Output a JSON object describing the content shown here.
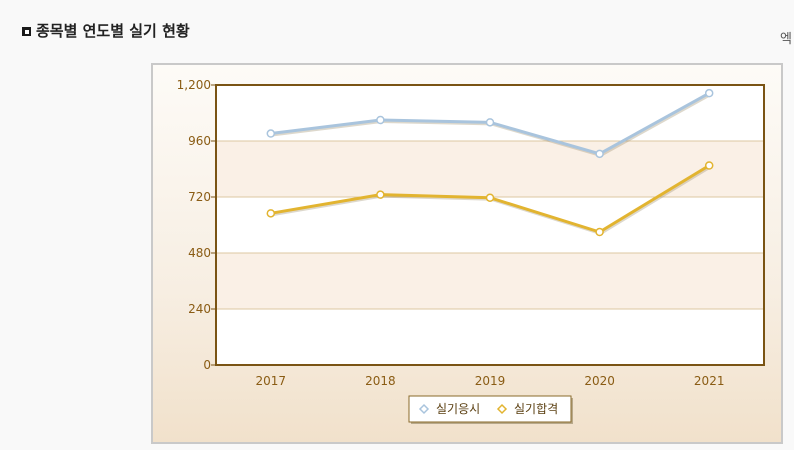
{
  "page": {
    "title": "종목별 연도별 실기 현황",
    "excel_label": "엑"
  },
  "chart_data": {
    "type": "line",
    "categories": [
      "2017",
      "2018",
      "2019",
      "2020",
      "2021"
    ],
    "ylim": [
      0,
      1200
    ],
    "yticks": [
      0,
      240,
      480,
      720,
      960,
      1200
    ],
    "ytick_labels": [
      "0",
      "240",
      "480",
      "720",
      "960",
      "1,200"
    ],
    "grid": true,
    "legend": "bottom-center",
    "series": [
      {
        "name": "실기응시",
        "values": [
          992,
          1050,
          1040,
          905,
          1165
        ],
        "color": "#a9c4dd"
      },
      {
        "name": "실기합격",
        "values": [
          650,
          730,
          717,
          570,
          855
        ],
        "color": "#e2b430"
      }
    ]
  }
}
